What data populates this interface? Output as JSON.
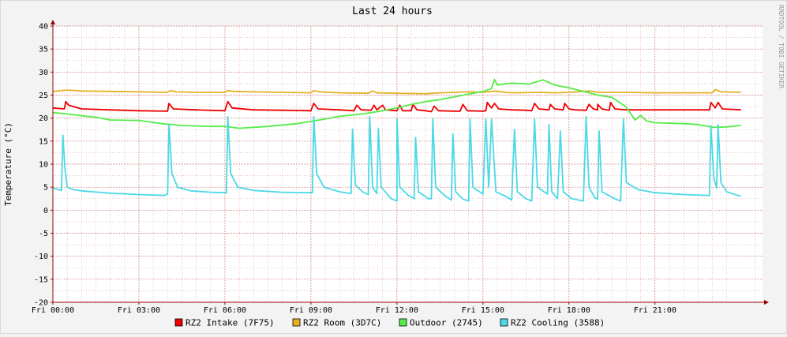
{
  "chart_data": {
    "type": "line",
    "title": "Last 24 hours",
    "ylabel": "Temperature (°C)",
    "watermark": "RRDTOOL / TOBI OETIKER",
    "ylim": [
      -20,
      40
    ],
    "xlim_hours": [
      0,
      24.75
    ],
    "grid": true,
    "legend_position": "bottom",
    "y_ticks": [
      -20,
      -15,
      -10,
      -5,
      0,
      5,
      10,
      15,
      20,
      25,
      30,
      35,
      40
    ],
    "y_tick_labels": [
      "-20",
      "-15",
      "-10",
      "-5",
      "0",
      "5",
      "10",
      "15",
      "20",
      "25",
      "30",
      "35",
      "40"
    ],
    "x_ticks": [
      0,
      3,
      6,
      9,
      12,
      15,
      18,
      21
    ],
    "x_tick_labels": [
      "Fri 00:00",
      "Fri 03:00",
      "Fri 06:00",
      "Fri 09:00",
      "Fri 12:00",
      "Fri 15:00",
      "Fri 18:00",
      "Fri 21:00"
    ],
    "colors": {
      "background": "#f3f3f3",
      "plot_background": "#ffffff",
      "grid_minor": "#e0a0a0",
      "grid_major": "#c46060",
      "axis": "#990000"
    },
    "series": [
      {
        "name": "RZ2 Intake (7F75)",
        "color": "#ee0000",
        "points": [
          [
            0,
            22.2
          ],
          [
            0.4,
            22
          ],
          [
            0.45,
            23.6
          ],
          [
            0.55,
            22.8
          ],
          [
            1,
            22
          ],
          [
            2,
            21.8
          ],
          [
            3,
            21.6
          ],
          [
            4,
            21.5
          ],
          [
            4.05,
            23.2
          ],
          [
            4.2,
            22
          ],
          [
            5,
            21.8
          ],
          [
            6,
            21.6
          ],
          [
            6.1,
            23.6
          ],
          [
            6.25,
            22.2
          ],
          [
            7,
            21.8
          ],
          [
            8,
            21.7
          ],
          [
            9,
            21.6
          ],
          [
            9.1,
            23.2
          ],
          [
            9.25,
            22
          ],
          [
            10,
            21.8
          ],
          [
            10.5,
            21.6
          ],
          [
            10.6,
            22.8
          ],
          [
            10.75,
            21.8
          ],
          [
            11.1,
            21.7
          ],
          [
            11.2,
            22.8
          ],
          [
            11.3,
            21.8
          ],
          [
            11.5,
            22.8
          ],
          [
            11.6,
            21.8
          ],
          [
            12,
            21.6
          ],
          [
            12.1,
            22.8
          ],
          [
            12.2,
            21.6
          ],
          [
            12.5,
            21.6
          ],
          [
            12.55,
            23
          ],
          [
            12.7,
            21.8
          ],
          [
            13,
            21.6
          ],
          [
            13.2,
            21.4
          ],
          [
            13.3,
            22.6
          ],
          [
            13.45,
            21.6
          ],
          [
            14,
            21.5
          ],
          [
            14.2,
            21.5
          ],
          [
            14.3,
            23
          ],
          [
            14.45,
            21.6
          ],
          [
            15,
            21.5
          ],
          [
            15.1,
            21.6
          ],
          [
            15.15,
            23.4
          ],
          [
            15.3,
            22.2
          ],
          [
            15.4,
            23.2
          ],
          [
            15.55,
            22
          ],
          [
            16,
            21.8
          ],
          [
            16.5,
            21.7
          ],
          [
            16.7,
            21.6
          ],
          [
            16.8,
            23.2
          ],
          [
            16.95,
            22
          ],
          [
            17.3,
            21.8
          ],
          [
            17.35,
            23
          ],
          [
            17.5,
            22
          ],
          [
            17.8,
            21.8
          ],
          [
            17.85,
            23.2
          ],
          [
            18,
            22
          ],
          [
            18.2,
            21.8
          ],
          [
            18.6,
            21.7
          ],
          [
            18.7,
            23
          ],
          [
            18.85,
            22
          ],
          [
            19,
            21.8
          ],
          [
            19,
            23
          ],
          [
            19.15,
            22
          ],
          [
            19.4,
            21.7
          ],
          [
            19.45,
            23.4
          ],
          [
            19.6,
            22
          ],
          [
            20,
            21.8
          ],
          [
            21,
            21.8
          ],
          [
            22,
            21.8
          ],
          [
            22.9,
            21.8
          ],
          [
            22.95,
            23.4
          ],
          [
            23.1,
            22.2
          ],
          [
            23.2,
            23.4
          ],
          [
            23.35,
            22
          ],
          [
            24,
            21.8
          ]
        ]
      },
      {
        "name": "RZ2 Room (3D7C)",
        "color": "#e6b022",
        "points": [
          [
            0,
            25.8
          ],
          [
            0.5,
            26.1
          ],
          [
            1,
            25.9
          ],
          [
            2,
            25.8
          ],
          [
            3,
            25.7
          ],
          [
            4,
            25.6
          ],
          [
            4.1,
            26
          ],
          [
            4.3,
            25.7
          ],
          [
            5,
            25.6
          ],
          [
            6,
            25.6
          ],
          [
            6.1,
            26
          ],
          [
            6.3,
            25.8
          ],
          [
            7,
            25.7
          ],
          [
            8,
            25.6
          ],
          [
            9,
            25.5
          ],
          [
            9.1,
            26
          ],
          [
            9.3,
            25.7
          ],
          [
            10,
            25.5
          ],
          [
            11,
            25.4
          ],
          [
            11.15,
            25.9
          ],
          [
            11.3,
            25.5
          ],
          [
            12,
            25.4
          ],
          [
            13,
            25.3
          ],
          [
            13.5,
            25.5
          ],
          [
            14,
            25.6
          ],
          [
            14.5,
            25.7
          ],
          [
            15,
            25.6
          ],
          [
            15.4,
            25.9
          ],
          [
            15.8,
            25.6
          ],
          [
            16,
            25.5
          ],
          [
            17,
            25.6
          ],
          [
            17.5,
            25.5
          ],
          [
            18,
            25.6
          ],
          [
            18.7,
            25.9
          ],
          [
            19,
            25.6
          ],
          [
            20,
            25.6
          ],
          [
            21,
            25.5
          ],
          [
            22,
            25.5
          ],
          [
            23,
            25.5
          ],
          [
            23.1,
            26.2
          ],
          [
            23.3,
            25.7
          ],
          [
            24,
            25.6
          ]
        ]
      },
      {
        "name": "Outdoor (2745)",
        "color": "#54ec48",
        "points": [
          [
            0,
            21.2
          ],
          [
            0.5,
            20.9
          ],
          [
            1,
            20.5
          ],
          [
            1.5,
            20.2
          ],
          [
            2,
            19.6
          ],
          [
            3,
            19.5
          ],
          [
            3.8,
            18.8
          ],
          [
            4.5,
            18.4
          ],
          [
            5.5,
            18.2
          ],
          [
            6,
            18.2
          ],
          [
            6.5,
            17.8
          ],
          [
            7.5,
            18.2
          ],
          [
            8.5,
            18.8
          ],
          [
            9.5,
            19.8
          ],
          [
            10,
            20.4
          ],
          [
            10.8,
            20.9
          ],
          [
            11.5,
            21.6
          ],
          [
            12,
            22.2
          ],
          [
            12.5,
            23
          ],
          [
            13,
            23.6
          ],
          [
            13.5,
            24
          ],
          [
            14,
            24.6
          ],
          [
            14.5,
            25.2
          ],
          [
            15,
            25.8
          ],
          [
            15.3,
            26.4
          ],
          [
            15.4,
            28.4
          ],
          [
            15.5,
            27.2
          ],
          [
            16,
            27.6
          ],
          [
            16.6,
            27.4
          ],
          [
            17.1,
            28.3
          ],
          [
            17.5,
            27.2
          ],
          [
            18,
            26.6
          ],
          [
            18.5,
            25.8
          ],
          [
            19,
            25
          ],
          [
            19.5,
            24.5
          ],
          [
            20,
            22.4
          ],
          [
            20.3,
            19.6
          ],
          [
            20.5,
            20.6
          ],
          [
            20.7,
            19.4
          ],
          [
            21,
            19
          ],
          [
            22,
            18.8
          ],
          [
            22.5,
            18.6
          ],
          [
            23,
            18
          ],
          [
            23.5,
            18.1
          ],
          [
            24,
            18.4
          ]
        ]
      },
      {
        "name": "RZ2 Cooling (3588)",
        "color": "#4ad9e6",
        "points": [
          [
            0,
            4.8
          ],
          [
            0.3,
            4.3
          ],
          [
            0.35,
            16.3
          ],
          [
            0.42,
            9
          ],
          [
            0.5,
            5
          ],
          [
            0.7,
            4.5
          ],
          [
            1,
            4.2
          ],
          [
            2,
            3.7
          ],
          [
            3,
            3.4
          ],
          [
            3.9,
            3.2
          ],
          [
            4,
            3.5
          ],
          [
            4.05,
            18.7
          ],
          [
            4.15,
            8
          ],
          [
            4.35,
            5
          ],
          [
            4.8,
            4.2
          ],
          [
            5.5,
            3.9
          ],
          [
            6.05,
            3.8
          ],
          [
            6.1,
            20.3
          ],
          [
            6.2,
            8
          ],
          [
            6.45,
            5
          ],
          [
            7,
            4.3
          ],
          [
            8,
            3.9
          ],
          [
            9.05,
            3.8
          ],
          [
            9.1,
            20.3
          ],
          [
            9.2,
            8
          ],
          [
            9.45,
            5
          ],
          [
            10,
            4
          ],
          [
            10.4,
            3.6
          ],
          [
            10.45,
            17.6
          ],
          [
            10.55,
            5.5
          ],
          [
            10.8,
            4
          ],
          [
            11,
            3.4
          ],
          [
            11.05,
            20.3
          ],
          [
            11.15,
            5
          ],
          [
            11.3,
            3.6
          ],
          [
            11.35,
            17.8
          ],
          [
            11.45,
            5
          ],
          [
            11.8,
            2.5
          ],
          [
            12,
            2
          ],
          [
            12,
            19.8
          ],
          [
            12.1,
            5
          ],
          [
            12.4,
            3.2
          ],
          [
            12.6,
            2.5
          ],
          [
            12.65,
            15.8
          ],
          [
            12.75,
            4
          ],
          [
            13.1,
            2.5
          ],
          [
            13.2,
            2.5
          ],
          [
            13.25,
            19.8
          ],
          [
            13.35,
            5
          ],
          [
            13.7,
            3
          ],
          [
            13.9,
            2.2
          ],
          [
            13.95,
            16.6
          ],
          [
            14.05,
            4
          ],
          [
            14.3,
            2.4
          ],
          [
            14.5,
            2
          ],
          [
            14.55,
            19.8
          ],
          [
            14.65,
            5
          ],
          [
            15,
            3.5
          ],
          [
            15.1,
            19.8
          ],
          [
            15.2,
            5
          ],
          [
            15.3,
            19.8
          ],
          [
            15.45,
            4
          ],
          [
            15.8,
            3
          ],
          [
            16,
            2.2
          ],
          [
            16.1,
            17.6
          ],
          [
            16.2,
            4
          ],
          [
            16.5,
            2.5
          ],
          [
            16.7,
            2
          ],
          [
            16.8,
            19.8
          ],
          [
            16.9,
            5
          ],
          [
            17.25,
            3.5
          ],
          [
            17.3,
            18.6
          ],
          [
            17.4,
            4
          ],
          [
            17.6,
            2.5
          ],
          [
            17.7,
            17.2
          ],
          [
            17.8,
            4
          ],
          [
            18.1,
            2.5
          ],
          [
            18.5,
            2
          ],
          [
            18.6,
            20.3
          ],
          [
            18.7,
            5
          ],
          [
            18.9,
            2.7
          ],
          [
            19,
            2.4
          ],
          [
            19.05,
            17.2
          ],
          [
            19.15,
            4
          ],
          [
            19.6,
            2.5
          ],
          [
            19.8,
            2
          ],
          [
            19.9,
            19.8
          ],
          [
            20,
            6
          ],
          [
            20.4,
            4.5
          ],
          [
            21,
            3.8
          ],
          [
            22,
            3.4
          ],
          [
            22.9,
            3.2
          ],
          [
            22.95,
            18.4
          ],
          [
            23.05,
            7
          ],
          [
            23.15,
            4.8
          ],
          [
            23.2,
            18.6
          ],
          [
            23.3,
            6
          ],
          [
            23.5,
            4
          ],
          [
            24,
            3
          ]
        ]
      }
    ]
  }
}
